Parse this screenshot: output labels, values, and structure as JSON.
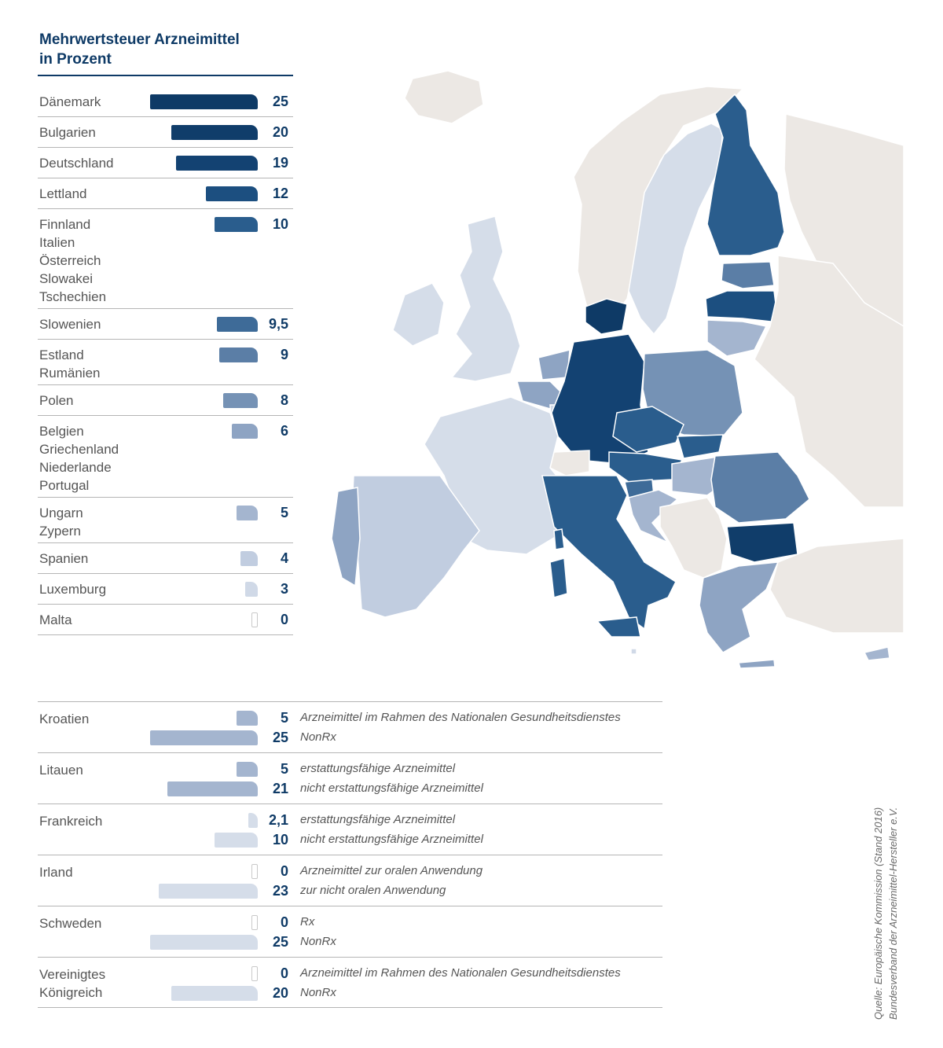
{
  "title_line1": "Mehrwertsteuer Arzneimittel",
  "title_line2": "in Prozent",
  "colors": {
    "c25": "#0e3a66",
    "c20": "#103d6a",
    "c19": "#134272",
    "c12": "#1c4f80",
    "c10": "#2a5d8d",
    "c95": "#3e6b98",
    "c9": "#5b7ea6",
    "c8": "#7592b5",
    "c6": "#8ea4c3",
    "c5": "#a4b5cf",
    "c4": "#c1cde0",
    "c3": "#d0d9e7",
    "c2": "#d5dde9",
    "nonEU": "#ece8e4"
  },
  "chart_data": {
    "type": "bar",
    "title": "Mehrwertsteuer Arzneimittel in Prozent",
    "groups": [
      {
        "countries": [
          "Dänemark"
        ],
        "value": 25,
        "label": "25",
        "color": "c25"
      },
      {
        "countries": [
          "Bulgarien"
        ],
        "value": 20,
        "label": "20",
        "color": "c20"
      },
      {
        "countries": [
          "Deutschland"
        ],
        "value": 19,
        "label": "19",
        "color": "c19"
      },
      {
        "countries": [
          "Lettland"
        ],
        "value": 12,
        "label": "12",
        "color": "c12"
      },
      {
        "countries": [
          "Finnland",
          "Italien",
          "Österreich",
          "Slowakei",
          "Tschechien"
        ],
        "value": 10,
        "label": "10",
        "color": "c10"
      },
      {
        "countries": [
          "Slowenien"
        ],
        "value": 9.5,
        "label": "9,5",
        "color": "c95"
      },
      {
        "countries": [
          "Estland",
          "Rumänien"
        ],
        "value": 9,
        "label": "9",
        "color": "c9"
      },
      {
        "countries": [
          "Polen"
        ],
        "value": 8,
        "label": "8",
        "color": "c8"
      },
      {
        "countries": [
          "Belgien",
          "Griechenland",
          "Niederlande",
          "Portugal"
        ],
        "value": 6,
        "label": "6",
        "color": "c6"
      },
      {
        "countries": [
          "Ungarn",
          "Zypern"
        ],
        "value": 5,
        "label": "5",
        "color": "c5"
      },
      {
        "countries": [
          "Spanien"
        ],
        "value": 4,
        "label": "4",
        "color": "c4"
      },
      {
        "countries": [
          "Luxemburg"
        ],
        "value": 3,
        "label": "3",
        "color": "c3"
      },
      {
        "countries": [
          "Malta"
        ],
        "value": 0,
        "label": "0",
        "color": "c3"
      }
    ],
    "special": [
      {
        "country": [
          "Kroatien"
        ],
        "items": [
          {
            "value": 5,
            "label": "5",
            "note": "Arzneimittel im Rahmen des Nationalen Gesundheitsdienstes",
            "color": "c5"
          },
          {
            "value": 25,
            "label": "25",
            "note": "NonRx",
            "color": "c5"
          }
        ]
      },
      {
        "country": [
          "Litauen"
        ],
        "items": [
          {
            "value": 5,
            "label": "5",
            "note": "erstattungsfähige Arzneimittel",
            "color": "c5"
          },
          {
            "value": 21,
            "label": "21",
            "note": "nicht erstattungsfähige Arzneimittel",
            "color": "c5"
          }
        ]
      },
      {
        "country": [
          "Frankreich"
        ],
        "items": [
          {
            "value": 2.1,
            "label": "2,1",
            "note": "erstattungsfähige Arzneimittel",
            "color": "c2"
          },
          {
            "value": 10,
            "label": "10",
            "note": "nicht erstattungsfähige Arzneimittel",
            "color": "c2"
          }
        ]
      },
      {
        "country": [
          "Irland"
        ],
        "items": [
          {
            "value": 0,
            "label": "0",
            "note": "Arzneimittel zur oralen Anwendung",
            "color": "c2"
          },
          {
            "value": 23,
            "label": "23",
            "note": "zur nicht oralen Anwendung",
            "color": "c2"
          }
        ]
      },
      {
        "country": [
          "Schweden"
        ],
        "items": [
          {
            "value": 0,
            "label": "0",
            "note": "Rx",
            "color": "c2"
          },
          {
            "value": 25,
            "label": "25",
            "note": "NonRx",
            "color": "c2"
          }
        ]
      },
      {
        "country": [
          "Vereinigtes",
          "Königreich"
        ],
        "items": [
          {
            "value": 0,
            "label": "0",
            "note": "Arzneimittel im Rahmen des Nationalen Gesundheitsdienstes",
            "color": "c2"
          },
          {
            "value": 20,
            "label": "20",
            "note": "NonRx",
            "color": "c2"
          }
        ]
      }
    ],
    "xlim": [
      0,
      25
    ]
  },
  "source_line1": "Quelle: Europäische Kommission (Stand 2016)",
  "source_line2": "Bundesverband der Arzneimittel-Hersteller e.V."
}
